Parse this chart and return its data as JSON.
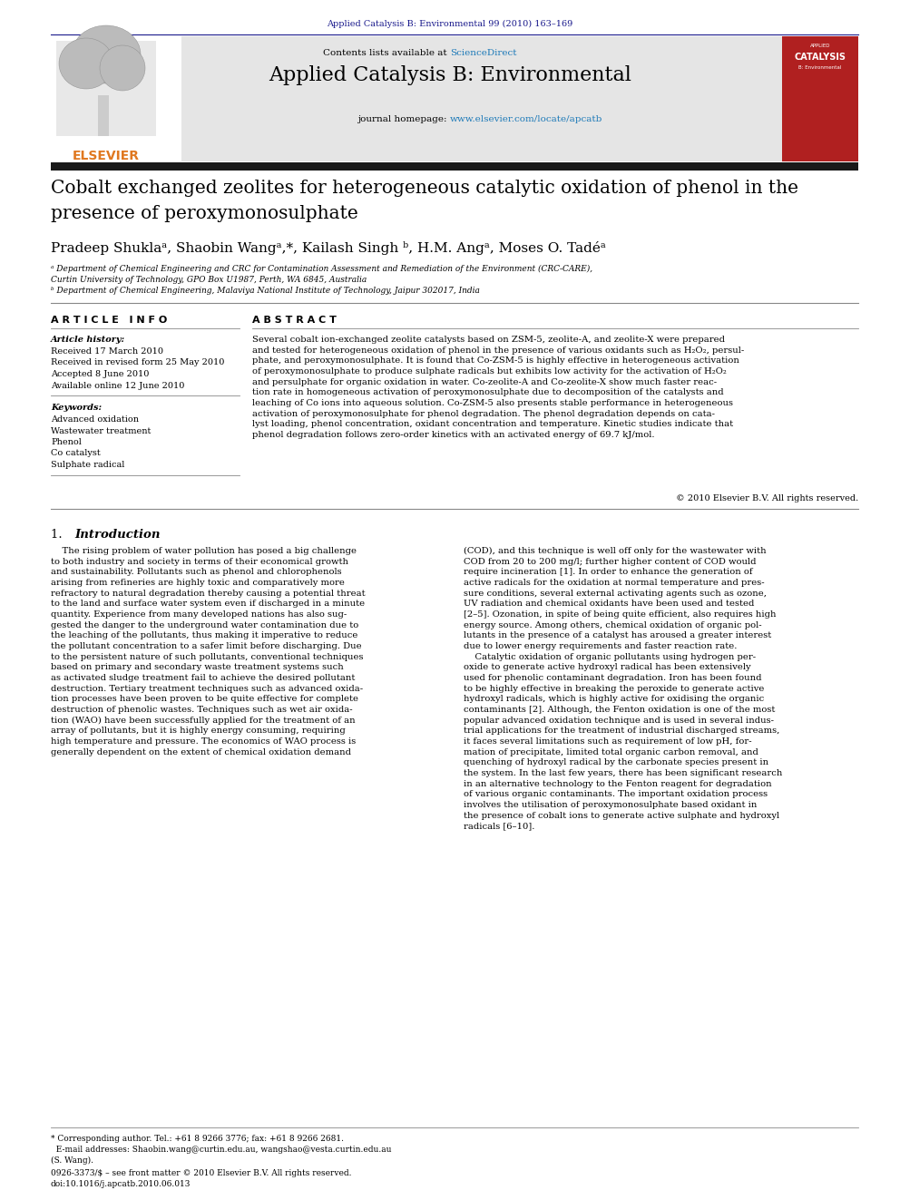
{
  "page_width": 9.92,
  "page_height": 13.23,
  "dpi": 100,
  "background_color": "#ffffff",
  "top_journal_ref": "Applied Catalysis B: Environmental 99 (2010) 163–169",
  "top_journal_ref_color": "#1a1a8c",
  "header_bg_color": "#e5e5e5",
  "contents_text": "Contents lists available at ",
  "sciencedirect_text": "ScienceDirect",
  "sciencedirect_color": "#1e7ab8",
  "journal_name": "Applied Catalysis B: Environmental",
  "journal_homepage_text": "journal homepage: ",
  "journal_url": "www.elsevier.com/locate/apcatb",
  "journal_url_color": "#1e7ab8",
  "dark_bar_color": "#1a1a1a",
  "paper_title_line1": "Cobalt exchanged zeolites for heterogeneous catalytic oxidation of phenol in the",
  "paper_title_line2": "presence of peroxymonosulphate",
  "authors_line": "Pradeep Shuklaᵃ, Shaobin Wangᵃ,*, Kailash Singh ᵇ, H.M. Angᵃ, Moses O. Tadéᵃ",
  "affil_a_line1": "ᵃ Department of Chemical Engineering and CRC for Contamination Assessment and Remediation of the Environment (CRC-CARE),",
  "affil_a_line2": "Curtin University of Technology, GPO Box U1987, Perth, WA 6845, Australia",
  "affil_b": "ᵇ Department of Chemical Engineering, Malaviya National Institute of Technology, Jaipur 302017, India",
  "article_info_header": "A R T I C L E   I N F O",
  "abstract_header": "A B S T R A C T",
  "article_history_label": "Article history:",
  "received": "Received 17 March 2010",
  "received_revised": "Received in revised form 25 May 2010",
  "accepted": "Accepted 8 June 2010",
  "available_online": "Available online 12 June 2010",
  "keywords_label": "Keywords:",
  "keywords": [
    "Advanced oxidation",
    "Wastewater treatment",
    "Phenol",
    "Co catalyst",
    "Sulphate radical"
  ],
  "abstract_text": "Several cobalt ion-exchanged zeolite catalysts based on ZSM-5, zeolite-A, and zeolite-X were prepared\nand tested for heterogeneous oxidation of phenol in the presence of various oxidants such as H₂O₂, persul-\nphate, and peroxymonosulphate. It is found that Co-ZSM-5 is highly effective in heterogeneous activation\nof peroxymonosulphate to produce sulphate radicals but exhibits low activity for the activation of H₂O₂\nand persulphate for organic oxidation in water. Co-zeolite-A and Co-zeolite-X show much faster reac-\ntion rate in homogeneous activation of peroxymonosulphate due to decomposition of the catalysts and\nleaching of Co ions into aqueous solution. Co-ZSM-5 also presents stable performance in heterogeneous\nactivation of peroxymonosulphate for phenol degradation. The phenol degradation depends on cata-\nlyst loading, phenol concentration, oxidant concentration and temperature. Kinetic studies indicate that\nphenol degradation follows zero-order kinetics with an activated energy of 69.7 kJ/mol.",
  "copyright_text": "© 2010 Elsevier B.V. All rights reserved.",
  "intro_heading": "1.  Introduction",
  "intro_col1": "    The rising problem of water pollution has posed a big challenge\nto both industry and society in terms of their economical growth\nand sustainability. Pollutants such as phenol and chlorophenols\narising from refineries are highly toxic and comparatively more\nrefractory to natural degradation thereby causing a potential threat\nto the land and surface water system even if discharged in a minute\nquantity. Experience from many developed nations has also sug-\ngested the danger to the underground water contamination due to\nthe leaching of the pollutants, thus making it imperative to reduce\nthe pollutant concentration to a safer limit before discharging. Due\nto the persistent nature of such pollutants, conventional techniques\nbased on primary and secondary waste treatment systems such\nas activated sludge treatment fail to achieve the desired pollutant\ndestruction. Tertiary treatment techniques such as advanced oxida-\ntion processes have been proven to be quite effective for complete\ndestruction of phenolic wastes. Techniques such as wet air oxida-\ntion (WAO) have been successfully applied for the treatment of an\narray of pollutants, but it is highly energy consuming, requiring\nhigh temperature and pressure. The economics of WAO process is\ngenerally dependent on the extent of chemical oxidation demand",
  "intro_col2": "(COD), and this technique is well off only for the wastewater with\nCOD from 20 to 200 mg/l; further higher content of COD would\nrequire incineration [1]. In order to enhance the generation of\nactive radicals for the oxidation at normal temperature and pres-\nsure conditions, several external activating agents such as ozone,\nUV radiation and chemical oxidants have been used and tested\n[2–5]. Ozonation, in spite of being quite efficient, also requires high\nenergy source. Among others, chemical oxidation of organic pol-\nlutants in the presence of a catalyst has aroused a greater interest\ndue to lower energy requirements and faster reaction rate.\n    Catalytic oxidation of organic pollutants using hydrogen per-\noxide to generate active hydroxyl radical has been extensively\nused for phenolic contaminant degradation. Iron has been found\nto be highly effective in breaking the peroxide to generate active\nhydroxyl radicals, which is highly active for oxidising the organic\ncontaminants [2]. Although, the Fenton oxidation is one of the most\npopular advanced oxidation technique and is used in several indus-\ntrial applications for the treatment of industrial discharged streams,\nit faces several limitations such as requirement of low pH, for-\nmation of precipitate, limited total organic carbon removal, and\nquenching of hydroxyl radical by the carbonate species present in\nthe system. In the last few years, there has been significant research\nin an alternative technology to the Fenton reagent for degradation\nof various organic contaminants. The important oxidation process\ninvolves the utilisation of peroxymonosulphate based oxidant in\nthe presence of cobalt ions to generate active sulphate and hydroxyl\nradicals [6–10].",
  "footer_text_1": "* Corresponding author. Tel.: +61 8 9266 3776; fax: +61 8 9266 2681.",
  "footer_text_2": "  E-mail addresses: Shaobin.wang@curtin.edu.au, wangshao@vesta.curtin.edu.au",
  "footer_text_3": "(S. Wang).",
  "footer_issn": "0926-3373/$ – see front matter © 2010 Elsevier B.V. All rights reserved.",
  "footer_doi": "doi:10.1016/j.apcatb.2010.06.013"
}
